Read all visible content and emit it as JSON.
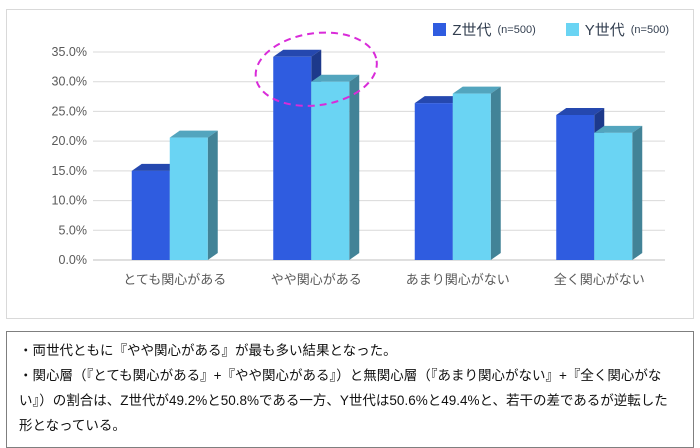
{
  "legend": [
    {
      "label": "Z世代",
      "n": "(n=500)",
      "color": "#2f5ce0"
    },
    {
      "label": "Y世代",
      "n": "(n=500)",
      "color": "#6ad4f3"
    }
  ],
  "chart_data": {
    "type": "bar",
    "style": "3d-bar",
    "categories": [
      "とても関心がある",
      "やや関心がある",
      "あまり関心がない",
      "全く関心がない"
    ],
    "series": [
      {
        "name": "Z世代 (n=500)",
        "color": "#2f5ce0",
        "values": [
          15.0,
          34.2,
          26.4,
          24.4
        ]
      },
      {
        "name": "Y世代 (n=500)",
        "color": "#6ad4f3",
        "values": [
          20.6,
          30.0,
          28.0,
          21.4
        ]
      }
    ],
    "ylim": [
      0,
      35
    ],
    "ytick_step": 5,
    "ytick_suffix": "%",
    "grid": true,
    "legend_position": "top-right",
    "annotation": {
      "type": "dashed-ellipse",
      "target_category": "やや関心がある",
      "color": "#d92bd9"
    }
  },
  "notes": {
    "lines": [
      "・両世代ともに『やや関心がある』が最も多い結果となった。",
      "・関心層（『とても関心がある』+『やや関心がある』）と無関心層（『あまり関心がない』+『全く関心がない』）の割合は、Z世代が49.2%と50.8%である一方、Y世代は50.6%と49.4%と、若干の差であるが逆転した形となっている。"
    ]
  }
}
